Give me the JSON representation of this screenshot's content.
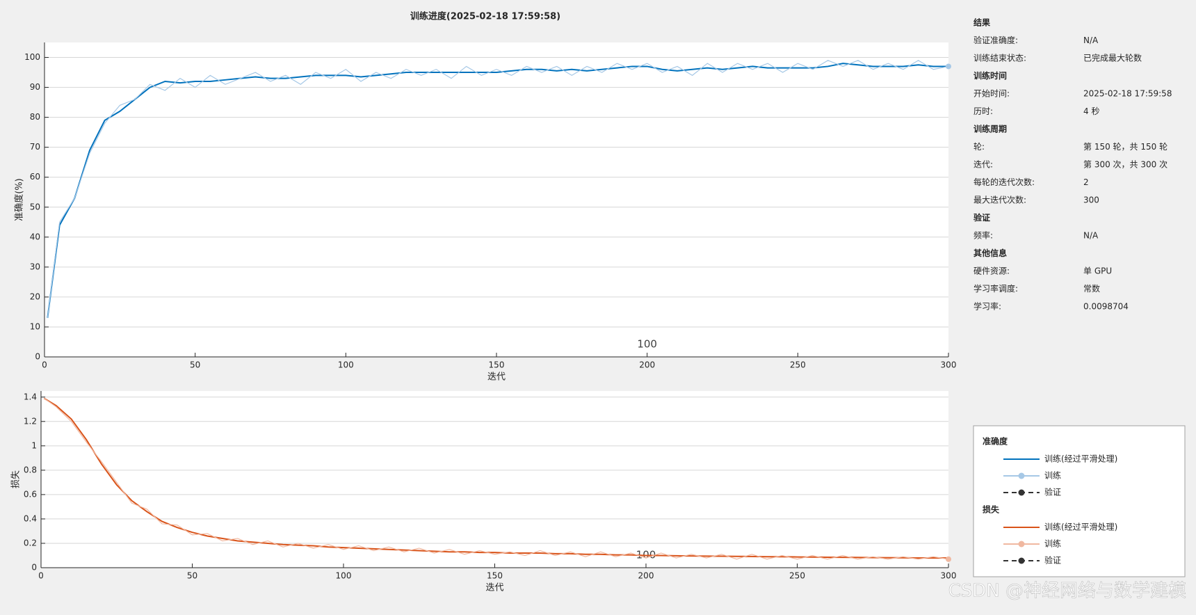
{
  "chart_data": [
    {
      "type": "line",
      "title": "训练进度(2025-02-18 17:59:58)",
      "x_label": "迭代",
      "y_label": "准确度(%)",
      "xlim": [
        0,
        300
      ],
      "xticks": [
        0,
        50,
        100,
        150,
        200,
        250,
        300
      ],
      "ylim": [
        0,
        105
      ],
      "yticks": [
        0,
        10,
        20,
        30,
        40,
        50,
        60,
        70,
        80,
        90,
        100
      ],
      "grid": true,
      "annotation": "100",
      "legend_title": "准确度",
      "x": [
        1,
        5,
        10,
        15,
        20,
        25,
        30,
        35,
        40,
        45,
        50,
        55,
        60,
        65,
        70,
        75,
        80,
        85,
        90,
        95,
        100,
        105,
        110,
        115,
        120,
        125,
        130,
        135,
        140,
        145,
        150,
        155,
        160,
        165,
        170,
        175,
        180,
        185,
        190,
        195,
        200,
        205,
        210,
        215,
        220,
        225,
        230,
        235,
        240,
        245,
        250,
        255,
        260,
        265,
        270,
        275,
        280,
        285,
        290,
        295,
        300
      ],
      "series": [
        {
          "name": "训练(经过平滑处理)",
          "color": "#0072bd",
          "marker": "none",
          "values": [
            13,
            44,
            53,
            69,
            79,
            82,
            86,
            90,
            92,
            91.5,
            92,
            92,
            92.5,
            93,
            93.5,
            93,
            93,
            93.5,
            94,
            94,
            94,
            93.5,
            94,
            94.5,
            95,
            95,
            95,
            95,
            95,
            95,
            95,
            95.5,
            96,
            96,
            95.5,
            96,
            95.5,
            96,
            96.5,
            97,
            97,
            96,
            95.5,
            96,
            96.5,
            96,
            96.5,
            97,
            96.5,
            96.5,
            96.5,
            96.5,
            97,
            98,
            97.5,
            97,
            97,
            97,
            97.5,
            97,
            97
          ]
        },
        {
          "name": "训练",
          "color": "#a6c8e6",
          "marker": "circle",
          "values": [
            13,
            45,
            53,
            68,
            78,
            84,
            86,
            91,
            89,
            93,
            90,
            94,
            91,
            93,
            95,
            92,
            94,
            91,
            95,
            93,
            96,
            92,
            95,
            93,
            96,
            94,
            96,
            93,
            97,
            94,
            96,
            94,
            97,
            95,
            97,
            94,
            97,
            95,
            98,
            96,
            98,
            95,
            97,
            94,
            98,
            95,
            98,
            96,
            98,
            95,
            98,
            96,
            99,
            97,
            99,
            96,
            98,
            96,
            99,
            96,
            97
          ]
        }
      ],
      "validation": {
        "name": "验证",
        "color": "#333333"
      }
    },
    {
      "type": "line",
      "x_label": "迭代",
      "y_label": "损失",
      "xlim": [
        0,
        300
      ],
      "xticks": [
        0,
        50,
        100,
        150,
        200,
        250,
        300
      ],
      "ylim": [
        0,
        1.45
      ],
      "yticks": [
        0,
        0.2,
        0.4,
        0.6,
        0.8,
        1,
        1.2,
        1.4
      ],
      "grid": true,
      "annotation": "100",
      "legend_title": "损失",
      "x": [
        1,
        5,
        10,
        15,
        20,
        25,
        30,
        35,
        40,
        45,
        50,
        55,
        60,
        65,
        70,
        75,
        80,
        85,
        90,
        95,
        100,
        105,
        110,
        115,
        120,
        125,
        130,
        135,
        140,
        145,
        150,
        155,
        160,
        165,
        170,
        175,
        180,
        185,
        190,
        195,
        200,
        205,
        210,
        215,
        220,
        225,
        230,
        235,
        240,
        245,
        250,
        255,
        260,
        265,
        270,
        275,
        280,
        285,
        290,
        295,
        300
      ],
      "series": [
        {
          "name": "训练(经过平滑处理)",
          "color": "#d95319",
          "marker": "none",
          "values": [
            1.39,
            1.33,
            1.22,
            1.05,
            0.85,
            0.68,
            0.55,
            0.46,
            0.38,
            0.33,
            0.29,
            0.26,
            0.24,
            0.22,
            0.21,
            0.2,
            0.19,
            0.185,
            0.18,
            0.17,
            0.165,
            0.16,
            0.155,
            0.15,
            0.145,
            0.14,
            0.135,
            0.13,
            0.13,
            0.125,
            0.125,
            0.12,
            0.12,
            0.12,
            0.115,
            0.115,
            0.11,
            0.11,
            0.105,
            0.105,
            0.1,
            0.1,
            0.098,
            0.096,
            0.095,
            0.094,
            0.093,
            0.092,
            0.09,
            0.09,
            0.088,
            0.087,
            0.086,
            0.085,
            0.084,
            0.083,
            0.082,
            0.081,
            0.08,
            0.08,
            0.08
          ]
        },
        {
          "name": "训练",
          "color": "#f0b8a0",
          "marker": "circle",
          "values": [
            1.39,
            1.32,
            1.2,
            1.03,
            0.87,
            0.7,
            0.53,
            0.48,
            0.36,
            0.35,
            0.27,
            0.28,
            0.22,
            0.24,
            0.19,
            0.22,
            0.17,
            0.2,
            0.16,
            0.19,
            0.15,
            0.18,
            0.14,
            0.17,
            0.13,
            0.16,
            0.12,
            0.15,
            0.11,
            0.14,
            0.11,
            0.13,
            0.1,
            0.14,
            0.1,
            0.13,
            0.09,
            0.13,
            0.09,
            0.12,
            0.08,
            0.12,
            0.08,
            0.11,
            0.08,
            0.11,
            0.07,
            0.11,
            0.07,
            0.1,
            0.07,
            0.1,
            0.07,
            0.1,
            0.07,
            0.09,
            0.07,
            0.09,
            0.07,
            0.09,
            0.07
          ]
        }
      ],
      "validation": {
        "name": "验证",
        "color": "#333333"
      }
    }
  ],
  "info": {
    "sections": [
      {
        "title": "结果",
        "rows": [
          [
            "验证准确度:",
            "N/A"
          ],
          [
            "训练结束状态:",
            "已完成最大轮数"
          ]
        ]
      },
      {
        "title": "训练时间",
        "rows": [
          [
            "开始时间:",
            "2025-02-18 17:59:58"
          ],
          [
            "历时:",
            "4 秒"
          ]
        ]
      },
      {
        "title": "训练周期",
        "rows": [
          [
            "轮:",
            "第 150 轮，共 150 轮"
          ],
          [
            "迭代:",
            "第 300 次，共 300 次"
          ],
          [
            "每轮的迭代次数:",
            "2"
          ],
          [
            "最大迭代次数:",
            "300"
          ]
        ]
      },
      {
        "title": "验证",
        "rows": [
          [
            "频率:",
            "N/A"
          ]
        ]
      },
      {
        "title": "其他信息",
        "rows": [
          [
            "硬件资源:",
            "单 GPU"
          ],
          [
            "学习率调度:",
            "常数"
          ],
          [
            "学习率:",
            "0.0098704"
          ]
        ]
      }
    ]
  },
  "watermark": "CSDN @神经网络与数学建模"
}
